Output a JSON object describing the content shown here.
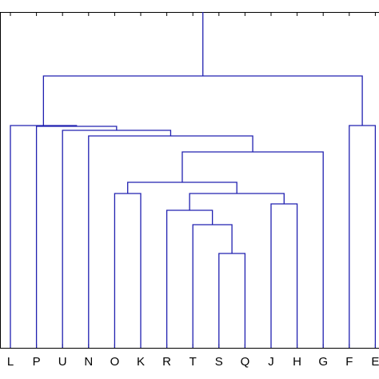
{
  "chart_data": {
    "type": "dendrogram",
    "categories": [
      "L",
      "P",
      "U",
      "N",
      "O",
      "K",
      "R",
      "T",
      "S",
      "Q",
      "J",
      "H",
      "G",
      "F",
      "E"
    ],
    "merges": [
      {
        "left": 8,
        "right": 9,
        "height": 118
      },
      {
        "left": 7,
        "right": 15,
        "height": 154
      },
      {
        "left": 6,
        "right": 16,
        "height": 172
      },
      {
        "left": 10,
        "right": 11,
        "height": 180
      },
      {
        "left": 17,
        "right": 18,
        "height": 193
      },
      {
        "left": 4,
        "right": 5,
        "height": 193
      },
      {
        "left": 20,
        "right": 19,
        "height": 207
      },
      {
        "left": 21,
        "right": 12,
        "height": 245
      },
      {
        "left": 3,
        "right": 22,
        "height": 265
      },
      {
        "left": 2,
        "right": 23,
        "height": 272
      },
      {
        "left": 1,
        "right": 24,
        "height": 277
      },
      {
        "left": 0,
        "right": 25,
        "height": 278
      },
      {
        "left": 13,
        "right": 14,
        "height": 278
      },
      {
        "left": 26,
        "right": 27,
        "height": 340
      }
    ],
    "color": "#2020b0",
    "ylim": [
      0,
      420
    ]
  }
}
